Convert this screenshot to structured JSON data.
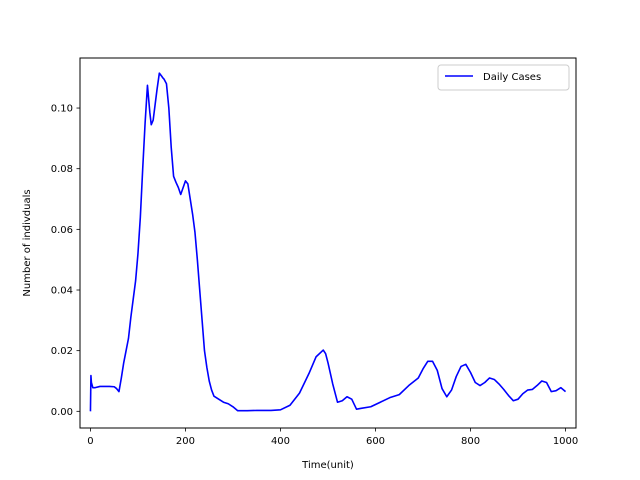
{
  "chart_data": {
    "type": "line",
    "title": "",
    "xlabel": "Time(unit)",
    "ylabel": "Number of indivduals",
    "xlim": [
      -22,
      1022
    ],
    "ylim": [
      -0.0055,
      0.1165
    ],
    "x_ticks": [
      0,
      200,
      400,
      600,
      800,
      1000
    ],
    "x_tick_labels": [
      "0",
      "200",
      "400",
      "600",
      "800",
      "1000"
    ],
    "y_ticks": [
      0.0,
      0.02,
      0.04,
      0.06,
      0.08,
      0.1
    ],
    "y_tick_labels": [
      "0.00",
      "0.02",
      "0.04",
      "0.06",
      "0.08",
      "0.10"
    ],
    "grid": false,
    "legend_position": "top-right",
    "series": [
      {
        "name": "Daily Cases",
        "color": "#0000ff",
        "x": [
          0,
          1,
          2,
          5,
          10,
          20,
          30,
          40,
          50,
          55,
          60,
          65,
          70,
          75,
          80,
          85,
          90,
          95,
          100,
          105,
          110,
          115,
          120,
          125,
          128,
          132,
          136,
          140,
          145,
          150,
          152,
          155,
          160,
          165,
          170,
          175,
          180,
          185,
          190,
          200,
          205,
          210,
          215,
          220,
          225,
          230,
          235,
          240,
          245,
          250,
          255,
          260,
          270,
          280,
          290,
          300,
          310,
          320,
          330,
          350,
          380,
          400,
          420,
          440,
          460,
          475,
          490,
          495,
          500,
          510,
          520,
          530,
          540,
          550,
          560,
          570,
          590,
          610,
          630,
          650,
          670,
          690,
          700,
          710,
          720,
          730,
          740,
          750,
          760,
          770,
          780,
          790,
          800,
          810,
          820,
          830,
          840,
          850,
          860,
          870,
          880,
          890,
          900,
          910,
          920,
          930,
          940,
          950,
          960,
          970,
          980,
          990,
          1000
        ],
        "y": [
          0.0,
          0.0118,
          0.0095,
          0.0078,
          0.0078,
          0.0082,
          0.0082,
          0.0082,
          0.0081,
          0.0075,
          0.0065,
          0.011,
          0.016,
          0.02,
          0.024,
          0.031,
          0.037,
          0.043,
          0.052,
          0.064,
          0.08,
          0.095,
          0.1075,
          0.0985,
          0.0945,
          0.096,
          0.101,
          0.106,
          0.1115,
          0.1105,
          0.11,
          0.1095,
          0.108,
          0.1,
          0.087,
          0.0775,
          0.0755,
          0.0738,
          0.0715,
          0.076,
          0.075,
          0.07,
          0.065,
          0.059,
          0.05,
          0.04,
          0.03,
          0.02,
          0.0145,
          0.01,
          0.007,
          0.005,
          0.004,
          0.003,
          0.0025,
          0.0015,
          0.0002,
          0.0002,
          0.0002,
          0.0003,
          0.0003,
          0.0005,
          0.002,
          0.006,
          0.0125,
          0.018,
          0.0202,
          0.019,
          0.016,
          0.009,
          0.003,
          0.0035,
          0.0048,
          0.004,
          0.0007,
          0.001,
          0.0015,
          0.003,
          0.0045,
          0.0055,
          0.0085,
          0.011,
          0.014,
          0.0165,
          0.0165,
          0.0135,
          0.0075,
          0.0048,
          0.007,
          0.0115,
          0.0148,
          0.0155,
          0.0128,
          0.0095,
          0.0085,
          0.0095,
          0.011,
          0.0105,
          0.009,
          0.0072,
          0.0052,
          0.0035,
          0.004,
          0.0058,
          0.007,
          0.0072,
          0.0085,
          0.01,
          0.0095,
          0.0065,
          0.0068,
          0.0078,
          0.0065
        ]
      }
    ]
  }
}
